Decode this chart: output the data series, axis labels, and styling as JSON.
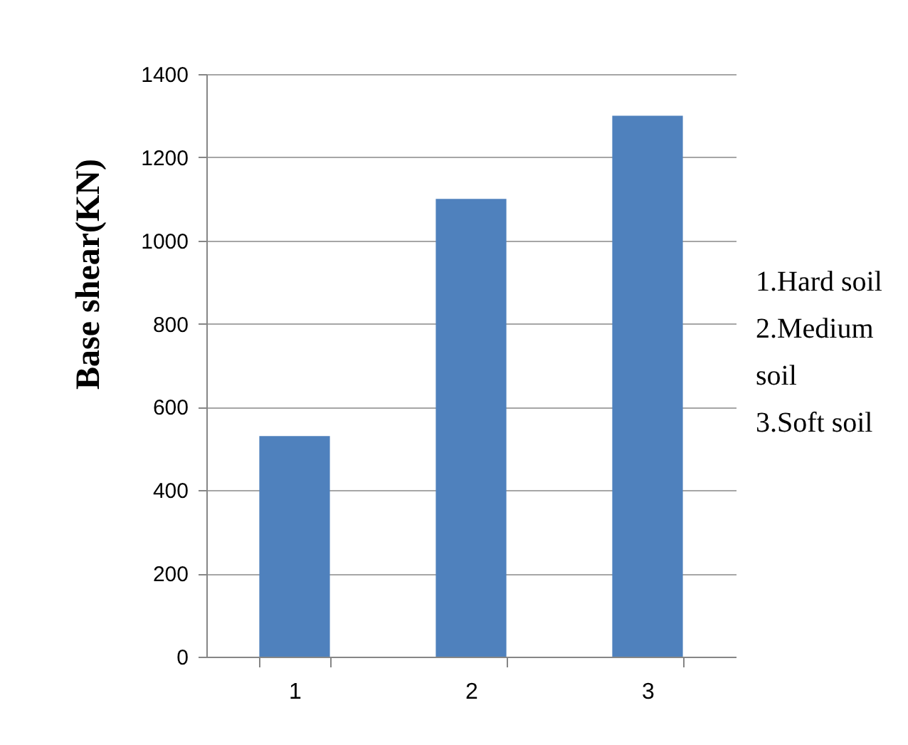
{
  "chart_data": {
    "type": "bar",
    "ylabel": "Base shear(KN)",
    "categories": [
      "1",
      "2",
      "3"
    ],
    "values": [
      530,
      1100,
      1300
    ],
    "color": "#4f81bd",
    "ylim": [
      0,
      1400
    ],
    "yticks": [
      0,
      200,
      400,
      600,
      800,
      1000,
      1200,
      1400
    ],
    "grid": "y",
    "annotations": [
      "1.Hard soil",
      "2.Medium soil",
      "3.Soft soil"
    ]
  }
}
